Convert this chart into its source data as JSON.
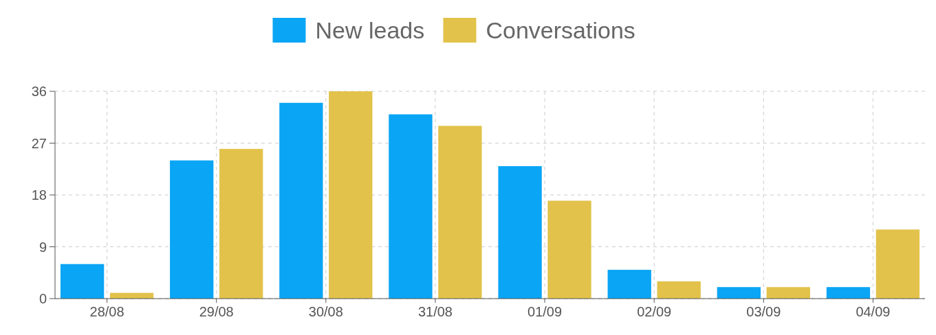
{
  "chart_data": {
    "type": "bar",
    "categories": [
      "28/08",
      "29/08",
      "30/08",
      "31/08",
      "01/09",
      "02/09",
      "03/09",
      "04/09"
    ],
    "series": [
      {
        "name": "New leads",
        "color": "#0aa5f5",
        "values": [
          6,
          24,
          34,
          32,
          23,
          5,
          2,
          2
        ]
      },
      {
        "name": "Conversations",
        "color": "#e2c24a",
        "values": [
          1,
          26,
          36,
          30,
          17,
          3,
          2,
          12
        ]
      }
    ],
    "ylim": [
      0,
      36
    ],
    "yticks": [
      0,
      9,
      18,
      27,
      36
    ],
    "grid": true,
    "legend": "top"
  }
}
